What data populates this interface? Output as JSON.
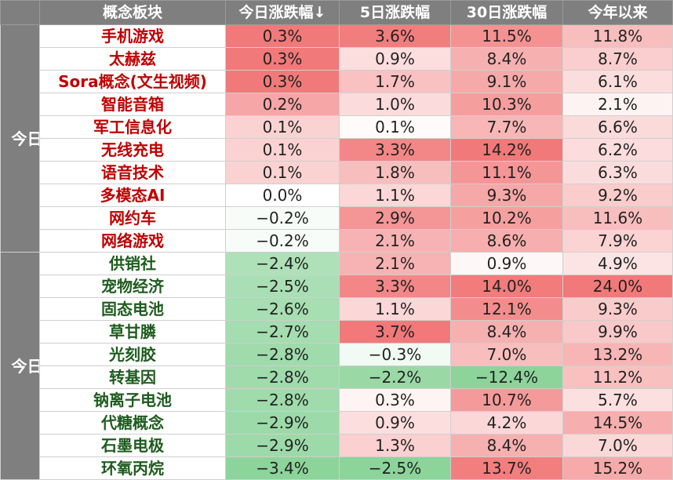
{
  "header": {
    "concept": "概念板块",
    "today": "今日涨跌幅↓",
    "d5": "5日涨跌幅",
    "d30": "30日涨跌幅",
    "ytd": "今年以来"
  },
  "groups": [
    {
      "label": "今日涨幅前十",
      "type": "up",
      "rows": [
        {
          "name": "手机游戏",
          "today": "0.3%",
          "d5": "3.6%",
          "d30": "11.5%",
          "ytd": "11.8%"
        },
        {
          "name": "太赫兹",
          "today": "0.3%",
          "d5": "0.9%",
          "d30": "8.4%",
          "ytd": "8.7%"
        },
        {
          "name": "Sora概念(文生视频)",
          "today": "0.3%",
          "d5": "1.7%",
          "d30": "9.1%",
          "ytd": "6.1%"
        },
        {
          "name": "智能音箱",
          "today": "0.2%",
          "d5": "1.0%",
          "d30": "10.3%",
          "ytd": "2.1%"
        },
        {
          "name": "军工信息化",
          "today": "0.1%",
          "d5": "0.1%",
          "d30": "7.7%",
          "ytd": "6.6%"
        },
        {
          "name": "无线充电",
          "today": "0.1%",
          "d5": "3.3%",
          "d30": "14.2%",
          "ytd": "6.2%"
        },
        {
          "name": "语音技术",
          "today": "0.1%",
          "d5": "1.8%",
          "d30": "11.1%",
          "ytd": "6.3%"
        },
        {
          "name": "多模态AI",
          "today": "0.0%",
          "d5": "1.1%",
          "d30": "9.3%",
          "ytd": "9.2%"
        },
        {
          "name": "网约车",
          "today": "−0.2%",
          "d5": "2.9%",
          "d30": "10.2%",
          "ytd": "11.6%"
        },
        {
          "name": "网络游戏",
          "today": "−0.2%",
          "d5": "2.1%",
          "d30": "8.6%",
          "ytd": "7.9%"
        }
      ]
    },
    {
      "label": "今日跌幅前十",
      "type": "down",
      "rows": [
        {
          "name": "供销社",
          "today": "−2.4%",
          "d5": "2.1%",
          "d30": "0.9%",
          "ytd": "4.9%"
        },
        {
          "name": "宠物经济",
          "today": "−2.5%",
          "d5": "3.3%",
          "d30": "14.0%",
          "ytd": "24.0%"
        },
        {
          "name": "固态电池",
          "today": "−2.6%",
          "d5": "1.1%",
          "d30": "12.1%",
          "ytd": "9.3%"
        },
        {
          "name": "草甘膦",
          "today": "−2.7%",
          "d5": "3.7%",
          "d30": "8.4%",
          "ytd": "9.9%"
        },
        {
          "name": "光刻胶",
          "today": "−2.8%",
          "d5": "−0.3%",
          "d30": "7.0%",
          "ytd": "13.2%"
        },
        {
          "name": "转基因",
          "today": "−2.8%",
          "d5": "−2.2%",
          "d30": "−12.4%",
          "ytd": "11.2%"
        },
        {
          "name": "钠离子电池",
          "today": "−2.8%",
          "d5": "0.3%",
          "d30": "10.7%",
          "ytd": "5.7%"
        },
        {
          "name": "代糖概念",
          "today": "−2.9%",
          "d5": "0.9%",
          "d30": "4.2%",
          "ytd": "14.5%"
        },
        {
          "name": "石墨电极",
          "today": "−2.9%",
          "d5": "1.3%",
          "d30": "8.4%",
          "ytd": "7.0%"
        },
        {
          "name": "环氧丙烷",
          "today": "−3.4%",
          "d5": "−2.5%",
          "d30": "13.7%",
          "ytd": "15.2%"
        }
      ]
    }
  ],
  "colors": {
    "header_bg": "#7f7f7f",
    "up_text": "#c00000",
    "down_text": "#1e5c1e",
    "pos_max": "#f06a6a",
    "neg_max": "#7fcf8f"
  }
}
